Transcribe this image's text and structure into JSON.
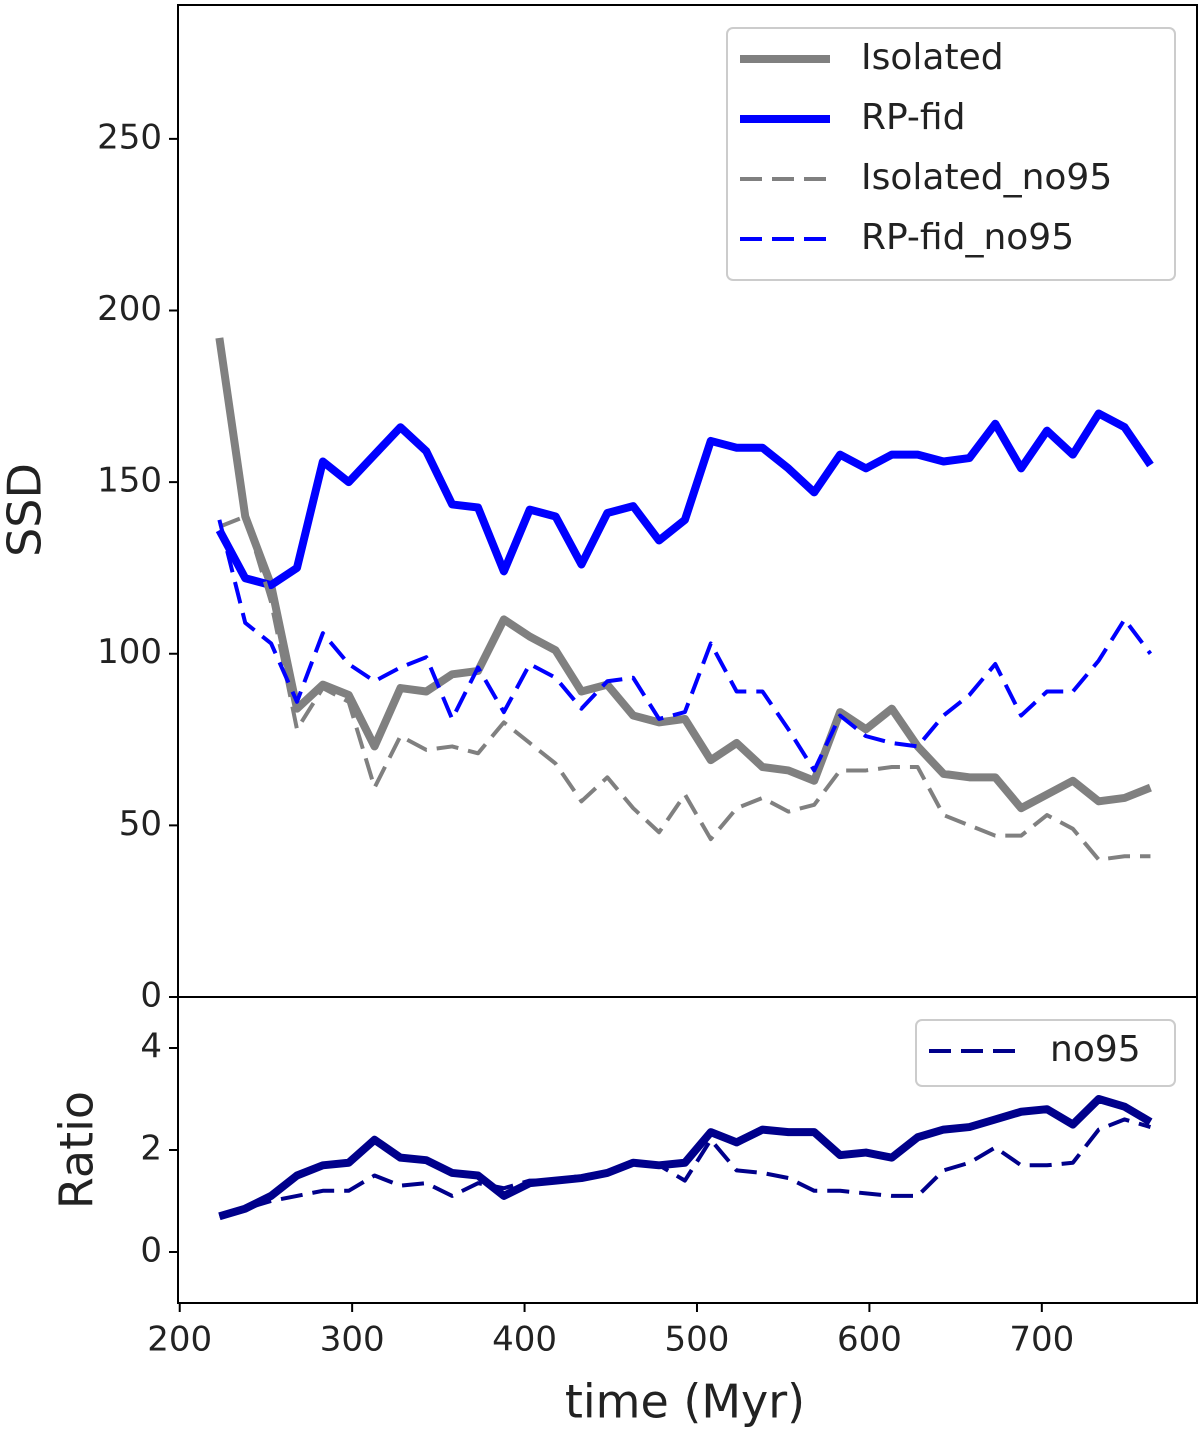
{
  "chart_data": [
    {
      "type": "line",
      "ylabel": "SSD",
      "x": [
        223,
        238,
        253,
        268,
        283,
        298,
        313,
        328,
        343,
        358,
        373,
        388,
        403,
        418,
        433,
        448,
        463,
        478,
        493,
        508,
        523,
        538,
        553,
        568,
        583,
        598,
        613,
        628,
        643,
        658,
        673,
        688,
        703,
        718,
        733,
        748,
        763
      ],
      "series": [
        {
          "name": "Isolated",
          "color": "#808080",
          "linestyle": "solid",
          "values": [
            192,
            140,
            120,
            84,
            91,
            88,
            73,
            90,
            89,
            94,
            95,
            110,
            105,
            101,
            89,
            91,
            82,
            80,
            81,
            69,
            74,
            67,
            66,
            63,
            83,
            78,
            84,
            73,
            65,
            64,
            64,
            55,
            59,
            63,
            57,
            58,
            61
          ]
        },
        {
          "name": "RP-fid",
          "color": "#0000ff",
          "linestyle": "solid",
          "values": [
            136,
            122,
            120,
            125,
            156,
            150,
            158,
            166,
            159,
            143.5,
            142.6,
            124,
            142,
            140,
            126,
            141,
            143,
            133,
            139,
            162,
            160,
            160,
            154,
            147,
            158,
            154,
            158,
            158,
            156,
            157,
            167,
            154,
            165,
            158,
            170,
            166,
            155
          ]
        },
        {
          "name": "Isolated_no95",
          "color": "#808080",
          "linestyle": "dashed",
          "values": [
            137,
            140,
            115,
            78,
            90,
            86,
            61,
            76,
            72,
            73,
            71,
            80,
            74,
            68,
            57,
            64,
            55,
            48,
            59,
            46,
            55,
            58,
            54,
            56,
            66,
            66,
            67,
            67,
            53,
            50,
            47,
            47,
            53,
            49,
            40,
            41,
            41
          ]
        },
        {
          "name": "RP-fid_no95",
          "color": "#0000ff",
          "linestyle": "dashed",
          "values": [
            139,
            109,
            103,
            86,
            106,
            97,
            92,
            96,
            99,
            81,
            96,
            83,
            97,
            93,
            84,
            92,
            93,
            81,
            83,
            103,
            89,
            89,
            78,
            66,
            82,
            76,
            74,
            73,
            82,
            88,
            97,
            82,
            89,
            89,
            98,
            110,
            100
          ]
        }
      ],
      "xlim": [
        199,
        790
      ],
      "ylim": [
        0,
        289
      ],
      "yticks": [
        0,
        50,
        100,
        150,
        200,
        250
      ],
      "legend": "upper right"
    },
    {
      "type": "line",
      "ylabel": "Ratio",
      "xlabel": "time (Myr)",
      "x": [
        223,
        238,
        253,
        268,
        283,
        298,
        313,
        328,
        343,
        358,
        373,
        388,
        403,
        418,
        433,
        448,
        463,
        478,
        493,
        508,
        523,
        538,
        553,
        568,
        583,
        598,
        613,
        628,
        643,
        658,
        673,
        688,
        703,
        718,
        733,
        748,
        763
      ],
      "series": [
        {
          "color": "#00008b",
          "linestyle": "solid",
          "values": [
            0.7,
            0.85,
            1.1,
            1.5,
            1.7,
            1.75,
            2.2,
            1.85,
            1.8,
            1.55,
            1.5,
            1.1,
            1.35,
            1.4,
            1.45,
            1.55,
            1.75,
            1.7,
            1.75,
            2.35,
            2.15,
            2.4,
            2.35,
            2.35,
            1.9,
            1.95,
            1.85,
            2.25,
            2.4,
            2.45,
            2.6,
            2.75,
            2.8,
            2.5,
            3.0,
            2.85,
            2.55
          ]
        },
        {
          "name": "no95",
          "color": "#00008b",
          "linestyle": "dashed",
          "values": [
            0.7,
            0.85,
            1.0,
            1.1,
            1.2,
            1.2,
            1.5,
            1.3,
            1.35,
            1.1,
            1.35,
            1.25,
            1.4,
            1.4,
            1.5,
            1.55,
            1.75,
            1.7,
            1.4,
            2.2,
            1.6,
            1.55,
            1.45,
            1.2,
            1.2,
            1.15,
            1.1,
            1.1,
            1.6,
            1.75,
            2.05,
            1.7,
            1.7,
            1.75,
            2.4,
            2.6,
            2.45
          ]
        }
      ],
      "xlim": [
        199,
        790
      ],
      "ylim": [
        -1,
        5
      ],
      "yticks": [
        0,
        2,
        4
      ],
      "xticks": [
        200,
        300,
        400,
        500,
        600,
        700
      ],
      "legend": "upper right"
    }
  ]
}
